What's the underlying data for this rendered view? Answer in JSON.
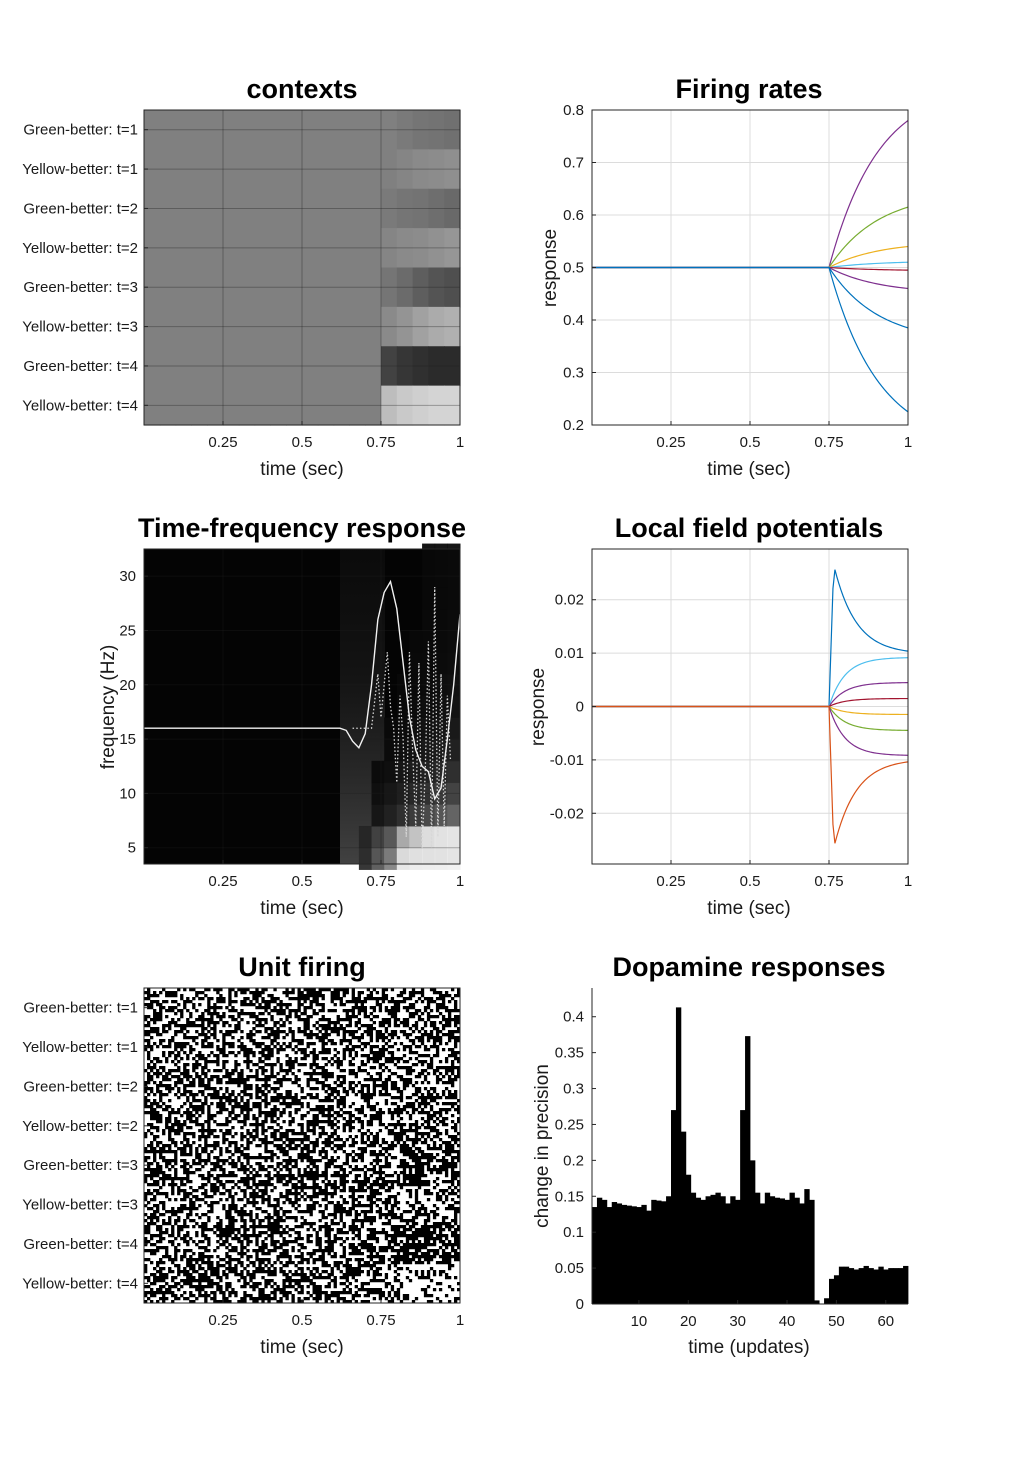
{
  "figure": {
    "contexts_labels": [
      "Green-better: t=1",
      "Yellow-better: t=1",
      "Green-better: t=2",
      "Yellow-better: t=2",
      "Green-better: t=3",
      "Yellow-better: t=3",
      "Green-better: t=4",
      "Yellow-better: t=4"
    ],
    "time_ticks": [
      "0.25",
      "0.5",
      "0.75",
      "1"
    ]
  },
  "chart_data": [
    {
      "id": "contexts",
      "type": "heatmap",
      "title": "contexts",
      "xlabel": "time (sec)",
      "ylabel": "",
      "xlim": [
        0,
        1
      ],
      "xticks": [
        0.25,
        0.5,
        0.75,
        1
      ],
      "rows": [
        "Green-better: t=1",
        "Yellow-better: t=1",
        "Green-better: t=2",
        "Yellow-better: t=2",
        "Green-better: t=3",
        "Yellow-better: t=3",
        "Green-better: t=4",
        "Yellow-better: t=4"
      ],
      "colormap": "gray",
      "grid": true,
      "values": [
        [
          0.5,
          0.5,
          0.5,
          0.5,
          0.5,
          0.5,
          0.5,
          0.5,
          0.5,
          0.5,
          0.5,
          0.5,
          0.5,
          0.5,
          0.5,
          0.5,
          0.48,
          0.46,
          0.45,
          0.44
        ],
        [
          0.5,
          0.5,
          0.5,
          0.5,
          0.5,
          0.5,
          0.5,
          0.5,
          0.5,
          0.5,
          0.5,
          0.5,
          0.5,
          0.5,
          0.5,
          0.5,
          0.52,
          0.54,
          0.55,
          0.56
        ],
        [
          0.5,
          0.5,
          0.5,
          0.5,
          0.5,
          0.5,
          0.5,
          0.5,
          0.5,
          0.5,
          0.5,
          0.5,
          0.5,
          0.5,
          0.5,
          0.48,
          0.46,
          0.45,
          0.43,
          0.41
        ],
        [
          0.5,
          0.5,
          0.5,
          0.5,
          0.5,
          0.5,
          0.5,
          0.5,
          0.5,
          0.5,
          0.5,
          0.5,
          0.5,
          0.5,
          0.5,
          0.52,
          0.54,
          0.55,
          0.57,
          0.59
        ],
        [
          0.5,
          0.5,
          0.5,
          0.5,
          0.5,
          0.5,
          0.5,
          0.5,
          0.5,
          0.5,
          0.5,
          0.5,
          0.5,
          0.5,
          0.5,
          0.46,
          0.42,
          0.37,
          0.33,
          0.31
        ],
        [
          0.5,
          0.5,
          0.5,
          0.5,
          0.5,
          0.5,
          0.5,
          0.5,
          0.5,
          0.5,
          0.5,
          0.5,
          0.5,
          0.5,
          0.5,
          0.54,
          0.58,
          0.63,
          0.67,
          0.69
        ],
        [
          0.5,
          0.5,
          0.5,
          0.5,
          0.5,
          0.5,
          0.5,
          0.5,
          0.5,
          0.5,
          0.5,
          0.5,
          0.5,
          0.5,
          0.5,
          0.26,
          0.21,
          0.19,
          0.17,
          0.17
        ],
        [
          0.5,
          0.5,
          0.5,
          0.5,
          0.5,
          0.5,
          0.5,
          0.5,
          0.5,
          0.5,
          0.5,
          0.5,
          0.5,
          0.5,
          0.5,
          0.74,
          0.79,
          0.81,
          0.83,
          0.83
        ]
      ]
    },
    {
      "id": "firing",
      "type": "line",
      "title": "Firing rates",
      "xlabel": "time (sec)",
      "ylabel": "response",
      "xlim": [
        0,
        1
      ],
      "ylim": [
        0.2,
        0.8
      ],
      "xticks": [
        0.25,
        0.5,
        0.75,
        1
      ],
      "yticks": [
        0.2,
        0.3,
        0.4,
        0.5,
        0.6,
        0.7,
        0.8
      ],
      "grid": true,
      "onset": 0.75,
      "baseline": 0.5,
      "series": [
        {
          "color": "#7e2f8e",
          "end": 0.78
        },
        {
          "color": "#77ac30",
          "end": 0.615
        },
        {
          "color": "#edb120",
          "end": 0.54
        },
        {
          "color": "#4dbeee",
          "end": 0.51
        },
        {
          "color": "#a2142f",
          "end": 0.495
        },
        {
          "color": "#7e2f8e",
          "end": 0.46
        },
        {
          "color": "#0072bd",
          "end": 0.385
        },
        {
          "color": "#0072bd",
          "end": 0.225
        }
      ]
    },
    {
      "id": "tf",
      "type": "heatmap",
      "title": "Time-frequency response",
      "xlabel": "time (sec)",
      "ylabel": "frequency (Hz)",
      "xlim": [
        0,
        1
      ],
      "ylim": [
        3.5,
        32.5
      ],
      "xticks": [
        0.25,
        0.5,
        0.75,
        1
      ],
      "yticks": [
        5,
        10,
        15,
        20,
        25,
        30
      ],
      "colormap": "gray",
      "overlay_solid": {
        "x": [
          0,
          0.05,
          0.1,
          0.15,
          0.2,
          0.25,
          0.3,
          0.35,
          0.4,
          0.45,
          0.5,
          0.55,
          0.6,
          0.62,
          0.64,
          0.66,
          0.68,
          0.7,
          0.72,
          0.74,
          0.76,
          0.78,
          0.8,
          0.82,
          0.84,
          0.86,
          0.88,
          0.9,
          0.92,
          0.94,
          0.96,
          0.98,
          1.0
        ],
        "y": [
          16,
          16,
          16,
          16,
          16,
          16,
          16,
          16,
          16,
          16,
          16,
          16,
          16,
          16,
          15.8,
          14.8,
          14.2,
          15.5,
          20,
          26,
          28.5,
          29.5,
          27,
          22,
          17,
          14,
          12.5,
          12,
          9.5,
          10.5,
          15,
          20,
          26.5
        ]
      },
      "overlay_dotted": {
        "x": [
          0.66,
          0.72,
          0.74,
          0.75,
          0.76,
          0.77,
          0.78,
          0.79,
          0.8,
          0.81,
          0.82,
          0.83,
          0.84,
          0.85,
          0.86,
          0.87,
          0.88,
          0.89,
          0.9,
          0.91,
          0.92,
          0.93,
          0.94,
          0.95,
          0.96,
          0.97
        ],
        "y": [
          16,
          16,
          21,
          17,
          20,
          23,
          18,
          16,
          11,
          19,
          15,
          6,
          23,
          14,
          7,
          22,
          5,
          12,
          24,
          5,
          29,
          6,
          21,
          7,
          19,
          13
        ]
      }
    },
    {
      "id": "lfp",
      "type": "line",
      "title": "Local field potentials",
      "xlabel": "time (sec)",
      "ylabel": "response",
      "xlim": [
        0,
        1
      ],
      "ylim": [
        -0.0295,
        0.0295
      ],
      "xticks": [
        0.25,
        0.5,
        0.75,
        1
      ],
      "yticks": [
        -0.02,
        -0.01,
        0,
        0.01,
        0.02
      ],
      "grid": true,
      "onset": 0.75,
      "series": [
        {
          "color": "#0072bd",
          "peak": 0.0265,
          "end": 0.0098,
          "mode": "decay"
        },
        {
          "color": "#4dbeee",
          "peak": 0.0092,
          "end": 0.0092,
          "mode": "rise"
        },
        {
          "color": "#7e2f8e",
          "peak": 0.0045,
          "end": 0.0045,
          "mode": "rise"
        },
        {
          "color": "#a2142f",
          "peak": 0.0015,
          "end": 0.0015,
          "mode": "rise"
        },
        {
          "color": "#edb120",
          "peak": -0.0015,
          "end": -0.0015,
          "mode": "rise"
        },
        {
          "color": "#77ac30",
          "peak": -0.0045,
          "end": -0.0045,
          "mode": "rise"
        },
        {
          "color": "#7e2f8e",
          "peak": -0.0092,
          "end": -0.0092,
          "mode": "rise"
        },
        {
          "color": "#d95319",
          "peak": -0.0265,
          "end": -0.0098,
          "mode": "decay"
        }
      ]
    },
    {
      "id": "units",
      "type": "heatmap",
      "title": "Unit firing",
      "xlabel": "time (sec)",
      "ylabel": "",
      "xlim": [
        0,
        1
      ],
      "xticks": [
        0.25,
        0.5,
        0.75,
        1
      ],
      "rows": [
        "Green-better: t=1",
        "Yellow-better: t=1",
        "Green-better: t=2",
        "Yellow-better: t=2",
        "Green-better: t=3",
        "Yellow-better: t=3",
        "Green-better: t=4",
        "Yellow-better: t=4"
      ],
      "colormap": "binary raster"
    },
    {
      "id": "dopamine",
      "type": "bar",
      "title": "Dopamine responses",
      "xlabel": "time (updates)",
      "ylabel": "change in precision",
      "xlim": [
        0.5,
        64.5
      ],
      "ylim": [
        0,
        0.44
      ],
      "xticks": [
        10,
        20,
        30,
        40,
        50,
        60
      ],
      "yticks": [
        0,
        0.05,
        0.1,
        0.15,
        0.2,
        0.25,
        0.3,
        0.35,
        0.4
      ],
      "categories": [
        1,
        2,
        3,
        4,
        5,
        6,
        7,
        8,
        9,
        10,
        11,
        12,
        13,
        14,
        15,
        16,
        17,
        18,
        19,
        20,
        21,
        22,
        23,
        24,
        25,
        26,
        27,
        28,
        29,
        30,
        31,
        32,
        33,
        34,
        35,
        36,
        37,
        38,
        39,
        40,
        41,
        42,
        42.9,
        44,
        45,
        46,
        47,
        48,
        49,
        50,
        51,
        52,
        53,
        54,
        55,
        56,
        57,
        58,
        59,
        60,
        61,
        62,
        63,
        64
      ],
      "values": [
        0.135,
        0.148,
        0.145,
        0.135,
        0.142,
        0.14,
        0.138,
        0.137,
        0.136,
        0.135,
        0.138,
        0.13,
        0.145,
        0.144,
        0.143,
        0.15,
        0.27,
        0.413,
        0.24,
        0.18,
        0.155,
        0.148,
        0.145,
        0.15,
        0.152,
        0.155,
        0.15,
        0.14,
        0.15,
        0.145,
        0.27,
        0.373,
        0.2,
        0.155,
        0.14,
        0.155,
        0.15,
        0.148,
        0.147,
        0.145,
        0.155,
        0.148,
        0.14,
        0.16,
        0.145,
        0.005,
        0.0,
        0.008,
        0.035,
        0.04,
        0.052,
        0.052,
        0.05,
        0.048,
        0.05,
        0.053,
        0.05,
        0.048,
        0.052,
        0.048,
        0.05,
        0.05,
        0.05,
        0.053
      ]
    }
  ]
}
